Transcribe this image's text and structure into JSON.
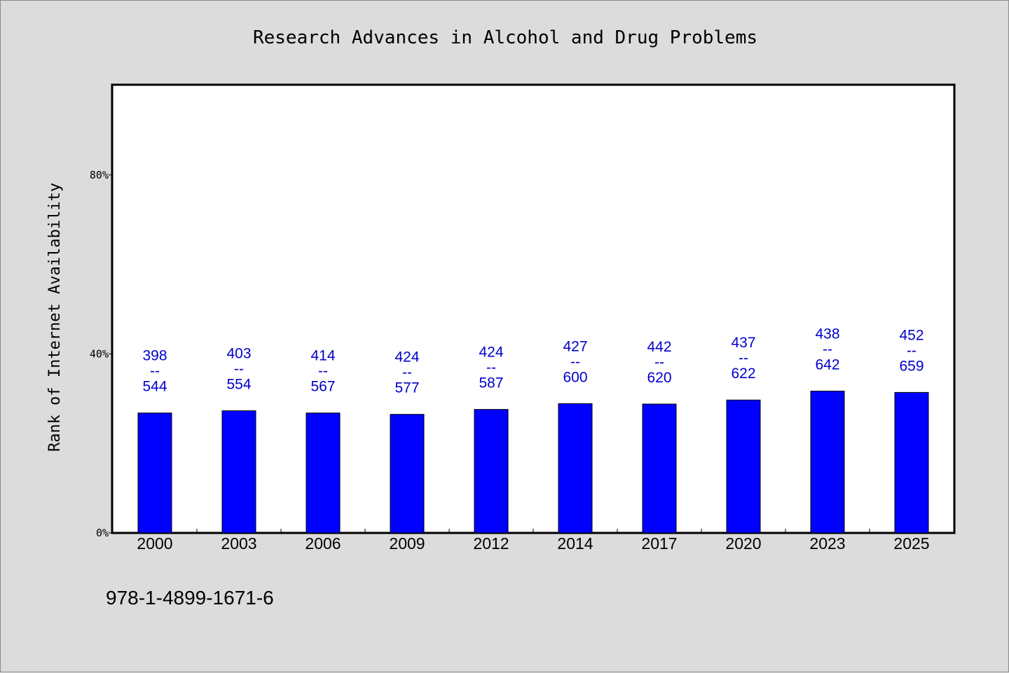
{
  "chart_data": {
    "type": "bar",
    "title": "Research Advances in Alcohol and Drug Problems",
    "ylabel": "Rank of Internet Availability",
    "xlabel": "",
    "ylim": [
      0,
      100
    ],
    "yticks": [
      0,
      40,
      80
    ],
    "ytick_labels": [
      "0%",
      "40%",
      "80%"
    ],
    "categories": [
      "2000",
      "2003",
      "2006",
      "2009",
      "2012",
      "2014",
      "2017",
      "2020",
      "2023",
      "2025"
    ],
    "values": [
      26.8,
      27.3,
      26.8,
      26.5,
      27.6,
      28.9,
      28.8,
      29.7,
      31.7,
      31.4
    ],
    "data_labels": [
      [
        "398",
        "--",
        "544"
      ],
      [
        "403",
        "--",
        "554"
      ],
      [
        "414",
        "--",
        "567"
      ],
      [
        "424",
        "--",
        "577"
      ],
      [
        "424",
        "--",
        "587"
      ],
      [
        "427",
        "--",
        "600"
      ],
      [
        "442",
        "--",
        "620"
      ],
      [
        "437",
        "--",
        "622"
      ],
      [
        "438",
        "--",
        "642"
      ],
      [
        "452",
        "--",
        "659"
      ]
    ],
    "bar_color": "#0000ff",
    "label_color": "#0000cc",
    "grid": false
  },
  "footer": {
    "isbn": "978-1-4899-1671-6"
  }
}
